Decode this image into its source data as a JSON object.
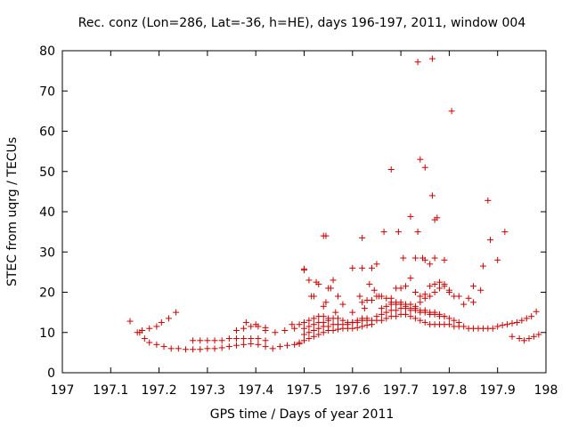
{
  "chart_data": {
    "type": "scatter",
    "title": "Rec. conz (Lon=286, Lat=-36, h=HE), days 196-197, 2011, window 004",
    "xlabel": "GPS time / Days of year 2011",
    "ylabel": "STEC from uqrg / TECUs",
    "xlim": [
      197.0,
      198.0
    ],
    "ylim": [
      0,
      80
    ],
    "x_ticks": [
      "197.1",
      "197.2",
      "197.3",
      "197.4",
      "197.5",
      "197.6",
      "197.7",
      "197.8",
      "197.9",
      "198"
    ],
    "y_ticks": [
      "0",
      "10",
      "20",
      "30",
      "40",
      "50",
      "60",
      "70",
      "80"
    ],
    "grid": false,
    "legend": "none",
    "marker": "plus",
    "color": "#cc0000",
    "series": [
      {
        "x": [
          197.14,
          197.155,
          197.165,
          197.18,
          197.195,
          197.205,
          197.22,
          197.235,
          197.16,
          197.17,
          197.18,
          197.195,
          197.21,
          197.225,
          197.24,
          197.255,
          197.27,
          197.285,
          197.3,
          197.315,
          197.33,
          197.345,
          197.36,
          197.375,
          197.39,
          197.405,
          197.42,
          197.435,
          197.45,
          197.465,
          197.48,
          197.49,
          197.27,
          197.285,
          197.3,
          197.315,
          197.33,
          197.345,
          197.36,
          197.375,
          197.39,
          197.405,
          197.42,
          197.36,
          197.375,
          197.39,
          197.405,
          197.42,
          197.38,
          197.4,
          197.42,
          197.44,
          197.46,
          197.475,
          197.49,
          197.5,
          197.51,
          197.52,
          197.53,
          197.54,
          197.55,
          197.56,
          197.57,
          197.58,
          197.59,
          197.6,
          197.61,
          197.62,
          197.63,
          197.64,
          197.5,
          197.51,
          197.52,
          197.53,
          197.54,
          197.55,
          197.56,
          197.57,
          197.58,
          197.59,
          197.6,
          197.61,
          197.62,
          197.63,
          197.64,
          197.65,
          197.5,
          197.51,
          197.52,
          197.53,
          197.54,
          197.55,
          197.56,
          197.57,
          197.58,
          197.59,
          197.6,
          197.61,
          197.62,
          197.63,
          197.48,
          197.49,
          197.5,
          197.51,
          197.52,
          197.53,
          197.54,
          197.55,
          197.5,
          197.51,
          197.52,
          197.525,
          197.545,
          197.555,
          197.565,
          197.58,
          197.6,
          197.615,
          197.625,
          197.635,
          197.645,
          197.655,
          197.66,
          197.67,
          197.68,
          197.69,
          197.7,
          197.71,
          197.72,
          197.73,
          197.74,
          197.75,
          197.76,
          197.77,
          197.78,
          197.79,
          197.8,
          197.81,
          197.82,
          197.83,
          197.84,
          197.85,
          197.86,
          197.87,
          197.88,
          197.89,
          197.9,
          197.91,
          197.92,
          197.93,
          197.94,
          197.95,
          197.96,
          197.97,
          197.98,
          197.65,
          197.66,
          197.67,
          197.68,
          197.69,
          197.7,
          197.71,
          197.72,
          197.73,
          197.74,
          197.75,
          197.76,
          197.77,
          197.78,
          197.79,
          197.8,
          197.81,
          197.82,
          197.66,
          197.67,
          197.68,
          197.69,
          197.7,
          197.71,
          197.72,
          197.73,
          197.74,
          197.75,
          197.76,
          197.77,
          197.78,
          197.79,
          197.8,
          197.81,
          197.83,
          197.84,
          197.85,
          197.68,
          197.69,
          197.7,
          197.71,
          197.72,
          197.73,
          197.74,
          197.75,
          197.76,
          197.77,
          197.78,
          197.79,
          197.8,
          197.62,
          197.63,
          197.64,
          197.65,
          197.66,
          197.67,
          197.68,
          197.69,
          197.7,
          197.71,
          197.72,
          197.73,
          197.74,
          197.75,
          197.76,
          197.77,
          197.78,
          197.79,
          197.93,
          197.945,
          197.955,
          197.965,
          197.975,
          197.985,
          197.5,
          197.545,
          197.62,
          197.665,
          197.68,
          197.695,
          197.705,
          197.72,
          197.735,
          197.74,
          197.75,
          197.765,
          197.77,
          197.79,
          197.805,
          197.85,
          197.87,
          197.885,
          197.9,
          197.915,
          197.735,
          197.765,
          197.82,
          197.865,
          197.88,
          197.62,
          197.64,
          197.65,
          197.73,
          197.745,
          197.75,
          197.76,
          197.77,
          197.775,
          197.54,
          197.55,
          197.56,
          197.57,
          197.6,
          197.515,
          197.53,
          197.54
        ],
        "y": [
          12.8,
          10.0,
          10.5,
          11.0,
          11.5,
          12.5,
          13.5,
          15.0,
          10.0,
          8.5,
          7.5,
          7.0,
          6.5,
          6.0,
          6.0,
          5.8,
          5.8,
          5.8,
          6.0,
          6.0,
          6.2,
          6.5,
          6.8,
          7.0,
          7.2,
          7.0,
          6.5,
          6.0,
          6.5,
          6.8,
          7.0,
          7.2,
          8.0,
          8.0,
          8.0,
          8.0,
          8.0,
          8.5,
          8.5,
          8.5,
          8.5,
          8.5,
          8.0,
          10.5,
          11.0,
          11.5,
          11.5,
          11.2,
          12.5,
          12.0,
          10.5,
          10.0,
          10.5,
          12.0,
          7.5,
          8.0,
          8.5,
          9.0,
          9.5,
          10.0,
          10.5,
          10.5,
          10.8,
          11.0,
          11.0,
          11.0,
          11.2,
          11.5,
          11.8,
          12.0,
          9.5,
          10.0,
          10.5,
          11.0,
          11.5,
          11.5,
          12.0,
          12.0,
          12.0,
          12.0,
          12.5,
          12.5,
          13.0,
          13.0,
          13.0,
          13.0,
          11.0,
          11.5,
          12.0,
          12.5,
          12.5,
          13.0,
          13.5,
          13.5,
          13.0,
          12.5,
          12.5,
          13.0,
          13.5,
          13.5,
          11.0,
          12.0,
          12.5,
          13.0,
          13.5,
          14.0,
          14.0,
          13.5,
          25.8,
          23.0,
          19.0,
          22.5,
          17.5,
          21.0,
          15.0,
          17.0,
          15.0,
          19.0,
          16.0,
          22.0,
          20.5,
          19.0,
          13.0,
          13.5,
          14.0,
          14.0,
          14.5,
          14.5,
          14.0,
          13.5,
          13.0,
          12.5,
          12.0,
          12.0,
          12.0,
          12.0,
          12.0,
          11.5,
          11.5,
          11.5,
          11.0,
          11.0,
          11.0,
          11.0,
          11.0,
          11.0,
          11.5,
          11.8,
          12.0,
          12.3,
          12.5,
          13.0,
          13.5,
          14.0,
          15.2,
          14.0,
          14.5,
          15.0,
          15.5,
          15.5,
          16.0,
          16.0,
          15.5,
          15.5,
          15.0,
          15.0,
          14.5,
          14.5,
          14.0,
          14.0,
          13.5,
          13.0,
          12.5,
          16.0,
          16.5,
          17.0,
          17.5,
          17.5,
          17.0,
          17.0,
          16.5,
          17.5,
          18.5,
          19.0,
          20.0,
          21.0,
          22.0,
          20.0,
          19.0,
          17.0,
          18.5,
          17.5,
          18.5,
          21.0,
          21.0,
          21.5,
          23.5,
          20.0,
          19.0,
          19.5,
          21.5,
          22.0,
          22.5,
          21.5,
          20.5,
          17.5,
          18.0,
          18.0,
          19.0,
          19.0,
          18.5,
          17.5,
          17.0,
          17.0,
          16.5,
          16.0,
          16.0,
          15.5,
          15.5,
          15.0,
          15.0,
          14.5,
          14.0,
          9.0,
          8.5,
          8.0,
          8.5,
          9.0,
          9.5,
          25.5,
          34.0,
          33.5,
          35.0,
          50.5,
          35.0,
          28.5,
          38.8,
          35.0,
          53.0,
          51.0,
          44.0,
          38.0,
          28.0,
          65.0,
          21.5,
          26.5,
          33.0,
          28.0,
          35.0,
          77.2,
          78.0,
          19.0,
          20.5,
          42.8,
          26.0,
          26.0,
          27.0,
          28.5,
          28.5,
          28.0,
          27.0,
          28.5,
          38.5,
          34.0,
          21.0,
          23.0,
          19.0,
          26.0,
          19.0,
          22.0,
          16.5
        ]
      }
    ]
  }
}
